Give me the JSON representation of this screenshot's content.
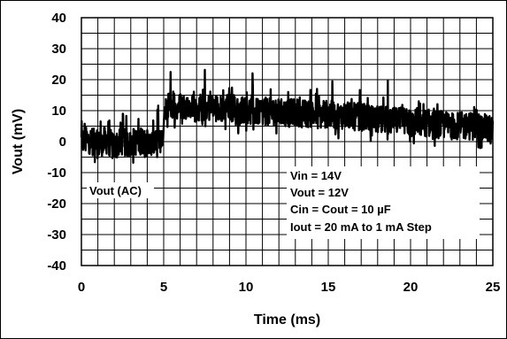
{
  "chart_data": {
    "type": "line",
    "title": "",
    "xlabel": "Time (ms)",
    "ylabel": "Vout (mV)",
    "xlim": [
      0,
      25
    ],
    "ylim": [
      -40,
      40
    ],
    "x_ticks": [
      0,
      5,
      10,
      15,
      20,
      25
    ],
    "y_ticks": [
      40,
      30,
      20,
      10,
      0,
      -10,
      -20,
      -30,
      -40
    ],
    "grid": true,
    "series": [
      {
        "name": "Vout (AC)",
        "color": "#000000",
        "x": [
          0,
          0.5,
          1,
          1.5,
          2,
          2.5,
          3,
          3.5,
          4,
          4.5,
          4.95,
          5.05,
          5.5,
          6,
          6.5,
          7,
          7.5,
          8,
          8.5,
          9,
          9.5,
          10,
          10.5,
          11,
          11.5,
          12,
          12.5,
          13,
          13.5,
          14,
          14.5,
          15,
          15.5,
          16,
          16.5,
          17,
          17.5,
          18,
          18.5,
          19,
          19.5,
          20,
          20.5,
          21,
          21.5,
          22,
          22.5,
          23,
          23.5,
          24,
          24.5,
          25
        ],
        "y": [
          0,
          0.5,
          -1,
          0.5,
          -1.5,
          0,
          -1,
          0.5,
          -1,
          -0.5,
          -1,
          11,
          12,
          11.5,
          12,
          10.5,
          11,
          11,
          10.5,
          11,
          10,
          10.5,
          9.5,
          10,
          9.5,
          9.5,
          9,
          9.5,
          9,
          9,
          8.5,
          9,
          8.5,
          8.5,
          8,
          8,
          7.5,
          7,
          7,
          6.5,
          6.5,
          6,
          6,
          6,
          5.5,
          5.5,
          5,
          5,
          5,
          5,
          4.5,
          4
        ]
      }
    ],
    "annotations": {
      "series_label": "Vout (AC)",
      "conditions": [
        "Vin = 14V",
        "Vout = 12V",
        "Cin = Cout = 10 µF",
        "Iout = 20 mA to 1 mA Step"
      ]
    }
  }
}
